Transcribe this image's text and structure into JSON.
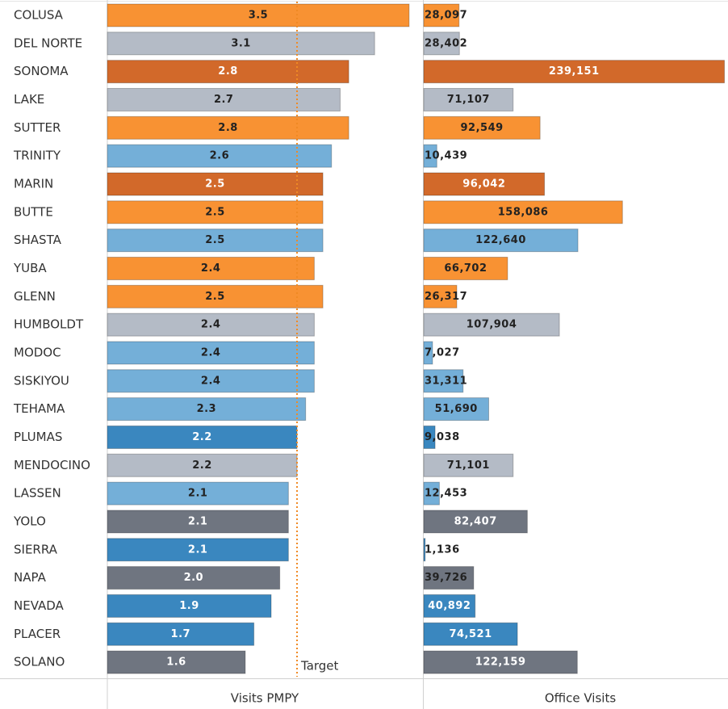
{
  "chart_data": {
    "type": "bar",
    "orientation": "horizontal",
    "categories": [
      "COLUSA",
      "DEL NORTE",
      "SONOMA",
      "LAKE",
      "SUTTER",
      "TRINITY",
      "MARIN",
      "BUTTE",
      "SHASTA",
      "YUBA",
      "GLENN",
      "HUMBOLDT",
      "MODOC",
      "SISKIYOU",
      "TEHAMA",
      "PLUMAS",
      "MENDOCINO",
      "LASSEN",
      "YOLO",
      "SIERRA",
      "NAPA",
      "NEVADA",
      "PLACER",
      "SOLANO"
    ],
    "series": [
      {
        "name": "Visits PMPY",
        "xlim": [
          0,
          3.66
        ],
        "values": [
          3.5,
          3.1,
          2.8,
          2.7,
          2.8,
          2.6,
          2.5,
          2.5,
          2.5,
          2.4,
          2.5,
          2.4,
          2.4,
          2.4,
          2.3,
          2.2,
          2.2,
          2.1,
          2.1,
          2.1,
          2.0,
          1.9,
          1.7,
          1.6
        ],
        "value_labels": [
          "3.5",
          "3.1",
          "2.8",
          "2.7",
          "2.8",
          "2.6",
          "2.5",
          "2.5",
          "2.5",
          "2.4",
          "2.5",
          "2.4",
          "2.4",
          "2.4",
          "2.3",
          "2.2",
          "2.2",
          "2.1",
          "2.1",
          "2.1",
          "2.0",
          "1.9",
          "1.7",
          "1.6"
        ],
        "colors": [
          "#f89233",
          "#b4bbc6",
          "#d2692a",
          "#b4bbc6",
          "#f89233",
          "#74afd8",
          "#d2692a",
          "#f89233",
          "#74afd8",
          "#f89233",
          "#f89233",
          "#b4bbc6",
          "#74afd8",
          "#74afd8",
          "#74afd8",
          "#3a87bf",
          "#b4bbc6",
          "#74afd8",
          "#6f7580",
          "#3a87bf",
          "#6f7580",
          "#3a87bf",
          "#3a87bf",
          "#6f7580"
        ],
        "reference_line": {
          "value": 2.2,
          "label": "Target",
          "color": "#f08a24"
        }
      },
      {
        "name": "Office Visits",
        "xlim": [
          0,
          242000
        ],
        "values": [
          28097,
          28402,
          239151,
          71107,
          92549,
          10439,
          96042,
          158086,
          122640,
          66702,
          26317,
          107904,
          7027,
          31311,
          51690,
          9038,
          71101,
          12453,
          82407,
          1136,
          39726,
          40892,
          74521,
          122159
        ],
        "value_labels": [
          "28,097",
          "28,402",
          "239,151",
          "71,107",
          "92,549",
          "10,439",
          "96,042",
          "158,086",
          "122,640",
          "66,702",
          "26,317",
          "107,904",
          "7,027",
          "31,311",
          "51,690",
          "9,038",
          "71,101",
          "12,453",
          "82,407",
          "1,136",
          "39,726",
          "40,892",
          "74,521",
          "122,159"
        ],
        "colors": [
          "#f89233",
          "#b4bbc6",
          "#d2692a",
          "#b4bbc6",
          "#f89233",
          "#74afd8",
          "#d2692a",
          "#f89233",
          "#74afd8",
          "#f89233",
          "#f89233",
          "#b4bbc6",
          "#74afd8",
          "#74afd8",
          "#74afd8",
          "#3a87bf",
          "#b4bbc6",
          "#74afd8",
          "#6f7580",
          "#3a87bf",
          "#6f7580",
          "#3a87bf",
          "#3a87bf",
          "#6f7580"
        ]
      }
    ]
  }
}
